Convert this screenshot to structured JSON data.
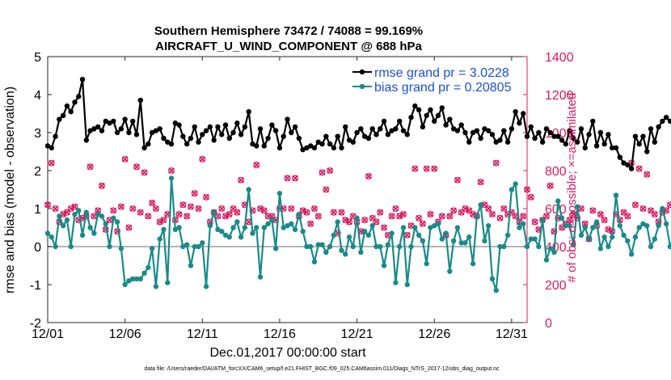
{
  "chart_data": {
    "type": "line",
    "title": "Southern Hemisphere 73472 / 74088 = 99.169%",
    "subtitle": "AIRCRAFT_U_WIND_COMPONENT @ 688 hPa",
    "xlabel": "Dec.01,2017 00:00:00 start",
    "ylabel": "rmse and bias (model - observation)",
    "ylabel_right": "# of obs: o=possible; ×=assimilated",
    "xlim": [
      0,
      31
    ],
    "ylim": [
      -2,
      5
    ],
    "ylim_right": [
      0,
      1400
    ],
    "x_ticks": [
      0,
      5,
      10,
      15,
      20,
      25,
      30
    ],
    "x_tick_labels": [
      "12/01",
      "12/06",
      "12/11",
      "12/16",
      "12/21",
      "12/26",
      "12/31"
    ],
    "y_ticks": [
      -2,
      -1,
      0,
      1,
      2,
      3,
      4,
      5
    ],
    "y_tick_labels": [
      "-2",
      "-1",
      "0",
      "1",
      "2",
      "3",
      "4",
      "5"
    ],
    "y_right_ticks": [
      0,
      200,
      400,
      600,
      800,
      1000,
      1200,
      1400
    ],
    "y_right_tick_labels": [
      "0",
      "200",
      "400",
      "600",
      "800",
      "1000",
      "1200",
      "1400"
    ],
    "x_step_days": 0.25,
    "legend_position": "top-right",
    "series": [
      {
        "name": "rmse grand pr = 3.0228",
        "color": "#000000",
        "marker": "filled-circle",
        "values": [
          2.65,
          2.6,
          2.9,
          3.35,
          3.45,
          3.7,
          3.55,
          3.8,
          3.95,
          4.4,
          2.8,
          3.05,
          3.1,
          3.15,
          3.05,
          3.3,
          3.25,
          3.3,
          3.0,
          3.1,
          3.35,
          3.0,
          3.3,
          2.95,
          3.85,
          2.6,
          2.7,
          3.0,
          3.05,
          3.1,
          2.85,
          2.75,
          2.7,
          3.25,
          3.2,
          2.9,
          2.7,
          2.85,
          3.15,
          2.75,
          2.95,
          3.05,
          3.15,
          2.8,
          3.15,
          2.95,
          3.2,
          2.85,
          3.0,
          3.25,
          2.95,
          3.15,
          3.55,
          2.7,
          2.65,
          3.1,
          2.65,
          2.85,
          3.2,
          3.05,
          2.6,
          2.9,
          3.35,
          3.0,
          3.15,
          2.85,
          2.55,
          2.6,
          2.65,
          2.6,
          2.75,
          2.7,
          2.9,
          2.7,
          2.6,
          2.9,
          2.6,
          3.15,
          2.8,
          2.75,
          3.0,
          3.1,
          2.9,
          2.85,
          3.1,
          2.95,
          3.1,
          3.3,
          2.95,
          3.05,
          3.1,
          3.3,
          3.05,
          2.95,
          3.4,
          3.7,
          3.6,
          3.15,
          3.45,
          3.6,
          3.3,
          3.45,
          3.65,
          3.2,
          3.35,
          3.1,
          3.05,
          3.2,
          3.0,
          2.75,
          3.0,
          3.05,
          2.85,
          3.1,
          3.05,
          2.95,
          2.75,
          2.8,
          3.05,
          2.75,
          3.1,
          3.55,
          3.25,
          3.5,
          2.9,
          3.15,
          2.85,
          3.0,
          2.75,
          3.1,
          3.0,
          2.9,
          2.9,
          2.8,
          2.7,
          3.05,
          2.85,
          2.75,
          3.1,
          2.6,
          2.95,
          3.3,
          2.65,
          3.0,
          2.7,
          2.95,
          2.6,
          2.6,
          2.35,
          2.2,
          2.15,
          2.05,
          2.9,
          2.7,
          2.9,
          2.5,
          3.1,
          2.75,
          3.15,
          3.3,
          3.4,
          3.3,
          3.2,
          3.8,
          2.7,
          3.45,
          2.7,
          2.95,
          2.95
        ]
      },
      {
        "name": "bias grand pr = 0.20805",
        "color": "#1a8a8a",
        "marker": "filled-circle",
        "values": [
          0.35,
          0.25,
          0.0,
          0.8,
          0.55,
          0.7,
          0.0,
          0.85,
          0.95,
          0.3,
          0.9,
          0.5,
          0.35,
          0.85,
          0.8,
          0.6,
          0.0,
          0.75,
          0.65,
          -0.05,
          -1.0,
          -0.9,
          -0.85,
          -0.85,
          -0.85,
          -0.7,
          -0.55,
          -0.05,
          -1.05,
          0.2,
          0.45,
          -0.95,
          1.8,
          0.45,
          0.5,
          0.0,
          0.05,
          -0.5,
          0.0,
          0.0,
          0.1,
          -1.05,
          0.55,
          0.9,
          0.45,
          0.4,
          0.3,
          0.25,
          0.5,
          0.65,
          0.25,
          0.5,
          1.5,
          0.35,
          0.5,
          -0.8,
          0.5,
          0.6,
          0.7,
          -0.05,
          1.4,
          0.5,
          0.55,
          0.6,
          0.45,
          0.85,
          0.4,
          0.0,
          0.0,
          -0.4,
          0.05,
          0.05,
          -0.15,
          0.0,
          0.3,
          0.65,
          -0.1,
          -0.2,
          0.25,
          0.0,
          0.75,
          -0.15,
          0.4,
          0.3,
          0.55,
          0.0,
          0.0,
          -0.5,
          0.05,
          0.35,
          -0.95,
          0.0,
          0.5,
          -1.0,
          0.0,
          0.5,
          0.3,
          0.15,
          -0.45,
          0.5,
          0.55,
          0.6,
          0.2,
          0.35,
          -0.65,
          0.15,
          0.5,
          0.1,
          0.1,
          0.25,
          -0.45,
          0.8,
          1.1,
          0.15,
          0.55,
          -0.85,
          -1.15,
          0.0,
          0.0,
          0.3,
          1.5,
          1.65,
          0.5,
          0.6,
          0.0,
          0.2,
          0.2,
          0.0,
          0.7,
          -0.35,
          -0.05,
          -0.15,
          1.2,
          0.75,
          0.55,
          0.55,
          0.05,
          1.05,
          0.3,
          0.5,
          0.2,
          0.5,
          0.65,
          -0.05,
          0.25,
          0.0,
          0.25,
          1.35,
          0.55,
          0.3,
          0.15,
          -0.2,
          0.25,
          0.5,
          0.6,
          0.55,
          0.0,
          0.2,
          0.55,
          1.0,
          0.6,
          0.0,
          0.25,
          0.3,
          0.1,
          1.25,
          0.05,
          0.55,
          -0.15,
          0.0,
          -0.45
        ]
      }
    ],
    "obs_possible": [
      620,
      840,
      600,
      530,
      570,
      580,
      600,
      610,
      540,
      550,
      560,
      820,
      560,
      590,
      720,
      490,
      540,
      590,
      480,
      610,
      860,
      500,
      600,
      820,
      580,
      790,
      560,
      630,
      600,
      530,
      540,
      570,
      800,
      540,
      570,
      620,
      560,
      610,
      680,
      600,
      860,
      660,
      530,
      580,
      560,
      600,
      560,
      570,
      600,
      580,
      750,
      620,
      530,
      590,
      830,
      600,
      590,
      560,
      560,
      540,
      600,
      600,
      760,
      600,
      760,
      560,
      590,
      580,
      520,
      600,
      560,
      790,
      700,
      800,
      580,
      470,
      580,
      540,
      530,
      560,
      530,
      480,
      540,
      770,
      550,
      530,
      580,
      500,
      460,
      560,
      600,
      560,
      570,
      460,
      510,
      810,
      550,
      520,
      810,
      570,
      810,
      530,
      560,
      460,
      560,
      590,
      750,
      580,
      600,
      590,
      570,
      560,
      740,
      620,
      600,
      570,
      840,
      550,
      600,
      570,
      580,
      560,
      530,
      560,
      700,
      660,
      530,
      490,
      540,
      560,
      720,
      480,
      550,
      500,
      520,
      540,
      570,
      550,
      600,
      520,
      440,
      590,
      510,
      570,
      540,
      490,
      480,
      570,
      540,
      580,
      560,
      840,
      620,
      810,
      600,
      780,
      590,
      570,
      530,
      580,
      590,
      620,
      560,
      580,
      690,
      600,
      580,
      550,
      500,
      450,
      560,
      860,
      650,
      540,
      600,
      570,
      600,
      550,
      520,
      560,
      630,
      650,
      450,
      510,
      600,
      620,
      560,
      0
    ],
    "obs_assimilated": [
      620,
      840,
      600,
      530,
      570,
      580,
      600,
      610,
      540,
      550,
      560,
      820,
      560,
      590,
      720,
      490,
      540,
      590,
      480,
      610,
      860,
      500,
      600,
      820,
      580,
      790,
      560,
      630,
      600,
      530,
      540,
      570,
      800,
      540,
      570,
      620,
      560,
      610,
      680,
      600,
      860,
      660,
      530,
      580,
      560,
      600,
      560,
      570,
      600,
      580,
      750,
      620,
      530,
      590,
      830,
      600,
      590,
      560,
      560,
      540,
      600,
      600,
      760,
      600,
      760,
      560,
      590,
      580,
      520,
      600,
      560,
      790,
      700,
      800,
      580,
      470,
      580,
      540,
      530,
      560,
      530,
      480,
      540,
      770,
      550,
      530,
      580,
      500,
      460,
      560,
      600,
      560,
      570,
      460,
      510,
      810,
      550,
      520,
      810,
      570,
      810,
      530,
      560,
      460,
      560,
      590,
      750,
      580,
      600,
      590,
      570,
      560,
      740,
      620,
      600,
      570,
      840,
      550,
      600,
      570,
      580,
      560,
      530,
      560,
      700,
      660,
      530,
      490,
      540,
      560,
      720,
      480,
      550,
      500,
      520,
      540,
      570,
      550,
      600,
      520,
      440,
      590,
      510,
      570,
      540,
      490,
      480,
      570,
      540,
      580,
      560,
      840,
      620,
      810,
      600,
      780,
      590,
      570,
      530,
      580,
      590,
      620,
      560,
      580,
      690,
      600,
      580,
      550,
      500,
      450,
      560,
      860,
      650,
      540,
      600,
      570,
      600,
      550,
      520,
      560,
      630,
      650,
      450,
      510,
      600,
      620,
      560,
      0
    ],
    "obs_color": "#d81b60",
    "zero_line": 0,
    "footnote": "data file: /Users/raeder/DAI/ATM_forcXX/CAM6_setup/f.e21.FHIST_BGC.f09_025.CAM6assim.011/Diags_NTrS_2017-12/obs_diag_output.nc"
  }
}
